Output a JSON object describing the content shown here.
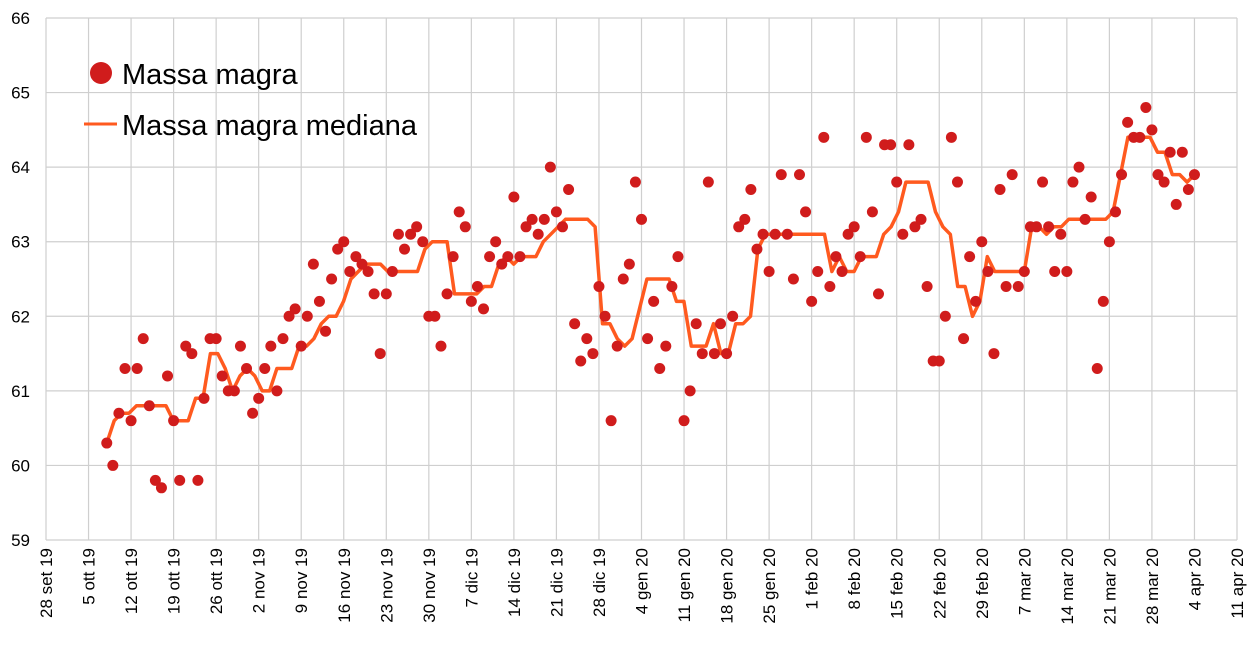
{
  "chart_data": {
    "type": "scatter+line",
    "title": "",
    "xlabel": "",
    "ylabel": "",
    "ylim": [
      59,
      66
    ],
    "yticks": [
      "59",
      "60",
      "61",
      "62",
      "63",
      "64",
      "65",
      "66"
    ],
    "xticks": [
      "28 set 19",
      "5 ott 19",
      "12 ott 19",
      "19 ott 19",
      "26 ott 19",
      "2 nov 19",
      "9 nov 19",
      "16 nov 19",
      "23 nov 19",
      "30 nov 19",
      "7 dic 19",
      "14 dic 19",
      "21 dic 19",
      "28 dic 19",
      "4 gen 20",
      "11 gen 20",
      "18 gen 20",
      "25 gen 20",
      "1 feb 20",
      "8 feb 20",
      "15 feb 20",
      "22 feb 20",
      "29 feb 20",
      "7 mar 20",
      "14 mar 20",
      "21 mar 20",
      "28 mar 20",
      "4 apr 20",
      "11 apr 20"
    ],
    "x_unit": "days since 28 set 19, daily points",
    "grid": true,
    "legend_position": "top-left",
    "colors": {
      "points": "#d01c1c",
      "median": "#ff5a1f",
      "grid": "#cfcfcf"
    },
    "series": [
      {
        "name": "Massa magra",
        "kind": "scatter",
        "start_day": 10,
        "values": [
          60.3,
          60.0,
          60.7,
          61.3,
          60.6,
          61.3,
          61.7,
          60.8,
          59.8,
          59.7,
          61.2,
          60.6,
          59.8,
          61.6,
          61.5,
          59.8,
          60.9,
          61.7,
          61.7,
          61.2,
          61.0,
          61.0,
          61.6,
          61.3,
          60.7,
          60.9,
          61.3,
          61.6,
          61.0,
          61.7,
          62.0,
          62.1,
          61.6,
          62.0,
          62.7,
          62.2,
          61.8,
          62.5,
          62.9,
          63.0,
          62.6,
          62.8,
          62.7,
          62.6,
          62.3,
          61.5,
          62.3,
          62.6,
          63.1,
          62.9,
          63.1,
          63.2,
          63.0,
          62.0,
          62.0,
          61.6,
          62.3,
          62.8,
          63.4,
          63.2,
          62.2,
          62.4,
          62.1,
          62.8,
          63.0,
          62.7,
          62.8,
          63.6,
          62.8,
          63.2,
          63.3,
          63.1,
          63.3,
          64.0,
          63.4,
          63.2,
          63.7,
          61.9,
          61.4,
          61.7,
          61.5,
          62.4,
          62.0,
          60.6,
          61.6,
          62.5,
          62.7,
          63.8,
          63.3,
          61.7,
          62.2,
          61.3,
          61.6,
          62.4,
          62.8,
          60.6,
          61.0,
          61.9,
          61.5,
          63.8,
          61.5,
          61.9,
          61.5,
          62.0,
          63.2,
          63.3,
          63.7,
          62.9,
          63.1,
          62.6,
          63.1,
          63.9,
          63.1,
          62.5,
          63.9,
          63.4,
          62.2,
          62.6,
          64.4,
          62.4,
          62.8,
          62.6,
          63.1,
          63.2,
          62.8,
          64.4,
          63.4,
          62.3,
          64.3,
          64.3,
          63.8,
          63.1,
          64.3,
          63.2,
          63.3,
          62.4,
          61.4,
          61.4,
          62.0,
          64.4,
          63.8,
          61.7,
          62.8,
          62.2,
          63.0,
          62.6,
          61.5,
          63.7,
          62.4,
          63.9,
          62.4,
          62.6,
          63.2,
          63.2,
          63.8,
          63.2,
          62.6,
          63.1,
          62.6,
          63.8,
          64.0,
          63.3,
          63.6,
          61.3,
          62.2,
          63.0,
          63.4,
          63.9,
          64.6,
          64.4,
          64.4,
          64.8,
          64.5,
          63.9,
          63.8,
          64.2,
          63.5,
          64.2,
          63.7,
          63.9
        ]
      },
      {
        "name": "Massa magra mediana",
        "kind": "line",
        "values": [
          60.3,
          60.6,
          60.7,
          60.7,
          60.8,
          60.8,
          60.8,
          60.8,
          60.8,
          60.6,
          60.6,
          60.6,
          60.9,
          60.9,
          61.5,
          61.5,
          61.3,
          61.0,
          61.2,
          61.3,
          61.2,
          61.0,
          61.0,
          61.3,
          61.3,
          61.3,
          61.6,
          61.6,
          61.7,
          61.9,
          62.0,
          62.0,
          62.2,
          62.5,
          62.6,
          62.7,
          62.7,
          62.7,
          62.6,
          62.6,
          62.6,
          62.6,
          62.6,
          62.9,
          63.0,
          63.0,
          63.0,
          62.3,
          62.3,
          62.3,
          62.3,
          62.4,
          62.4,
          62.7,
          62.8,
          62.7,
          62.8,
          62.8,
          62.8,
          63.0,
          63.1,
          63.2,
          63.3,
          63.3,
          63.3,
          63.3,
          63.2,
          61.9,
          61.9,
          61.7,
          61.6,
          61.7,
          62.1,
          62.5,
          62.5,
          62.5,
          62.5,
          62.2,
          62.2,
          61.6,
          61.6,
          61.6,
          61.9,
          61.5,
          61.5,
          61.9,
          61.9,
          62.0,
          62.9,
          63.1,
          63.1,
          63.1,
          63.1,
          63.1,
          63.1,
          63.1,
          63.1,
          63.1,
          62.6,
          62.8,
          62.6,
          62.6,
          62.8,
          62.8,
          62.8,
          63.1,
          63.2,
          63.4,
          63.8,
          63.8,
          63.8,
          63.8,
          63.4,
          63.2,
          63.1,
          62.4,
          62.4,
          62.0,
          62.2,
          62.8,
          62.6,
          62.6,
          62.6,
          62.6,
          62.6,
          63.2,
          63.2,
          63.1,
          63.2,
          63.2,
          63.3,
          63.3,
          63.3,
          63.3,
          63.3,
          63.3,
          63.4,
          63.9,
          64.4,
          64.4,
          64.4,
          64.4,
          64.2,
          64.2,
          63.9,
          63.9,
          63.8,
          63.9
        ]
      }
    ]
  }
}
